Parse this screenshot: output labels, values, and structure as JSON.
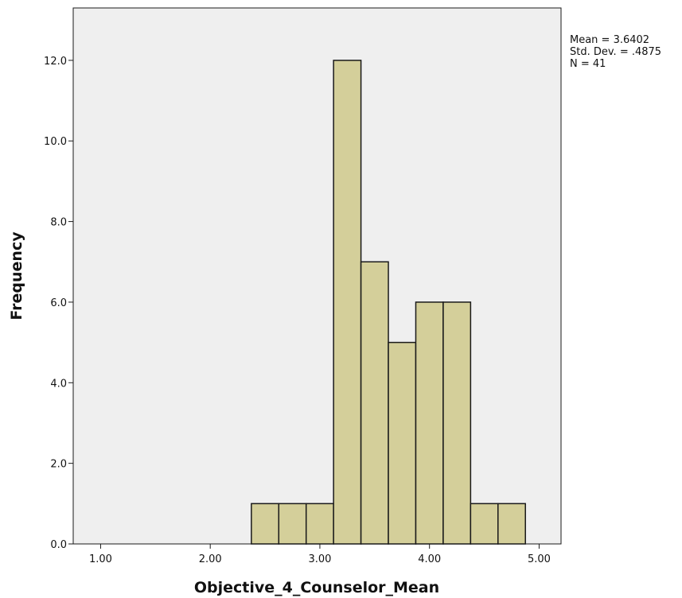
{
  "chart_data": {
    "type": "bar",
    "subtype": "histogram",
    "xlabel": "Objective_4_Counselor_Mean",
    "ylabel": "Frequency",
    "xlim": [
      0.75,
      5.2
    ],
    "ylim": [
      0,
      13.3
    ],
    "x_ticks": [
      1.0,
      2.0,
      3.0,
      4.0,
      5.0
    ],
    "x_tick_labels": [
      "1.00",
      "2.00",
      "3.00",
      "4.00",
      "5.00"
    ],
    "y_ticks": [
      0,
      2,
      4,
      6,
      8,
      10,
      12
    ],
    "y_tick_labels": [
      "0.0",
      "2.0",
      "4.0",
      "6.0",
      "8.0",
      "10.0",
      "12.0"
    ],
    "bins": [
      {
        "start": 2.375,
        "end": 2.625,
        "count": 1
      },
      {
        "start": 2.625,
        "end": 2.875,
        "count": 1
      },
      {
        "start": 2.875,
        "end": 3.125,
        "count": 1
      },
      {
        "start": 3.125,
        "end": 3.375,
        "count": 12
      },
      {
        "start": 3.375,
        "end": 3.625,
        "count": 7
      },
      {
        "start": 3.625,
        "end": 3.875,
        "count": 5
      },
      {
        "start": 3.875,
        "end": 4.125,
        "count": 6
      },
      {
        "start": 4.125,
        "end": 4.375,
        "count": 6
      },
      {
        "start": 4.375,
        "end": 4.625,
        "count": 1
      },
      {
        "start": 4.625,
        "end": 4.875,
        "count": 1
      }
    ],
    "stats": {
      "mean_line": "Mean = 3.6402",
      "sd_line": "Std. Dev. = .4875",
      "n_line": "N = 41"
    },
    "grid": false,
    "colors": {
      "bar_fill": "#d4cf9a",
      "bar_stroke": "#1a1a1a",
      "plot_background": "#efefef",
      "page_background": "#ffffff"
    }
  }
}
